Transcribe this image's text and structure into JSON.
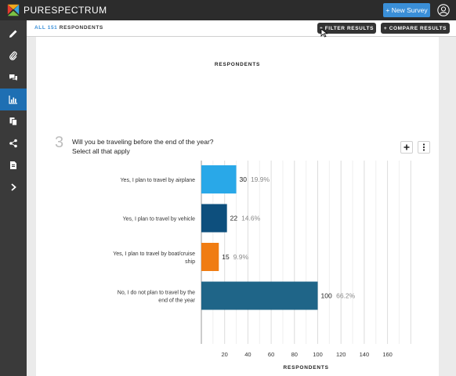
{
  "app": {
    "brand": "PURESPECTRUM",
    "new_survey_label": "+ New Survey"
  },
  "sidebar": {
    "items": [
      {
        "name": "pencil-icon"
      },
      {
        "name": "paperclip-icon"
      },
      {
        "name": "chat-icon"
      },
      {
        "name": "chart-icon",
        "active": true
      },
      {
        "name": "copy-icon"
      },
      {
        "name": "share-icon"
      },
      {
        "name": "document-icon"
      },
      {
        "name": "chevron-right-icon"
      }
    ]
  },
  "toolbar": {
    "all_label": "ALL 151",
    "respondents_label": "RESPONDENTS",
    "filter_label": "+ FILTER RESULTS",
    "compare_label": "+ COMPARE RESULTS"
  },
  "card": {
    "header": "RESPONDENTS",
    "question_number": "3",
    "question_line1": "Will you be traveling before the end of the year?",
    "question_line2": "Select all that apply"
  },
  "chart_data": {
    "type": "bar",
    "orientation": "horizontal",
    "categories": [
      "Yes, I plan to travel by airplane",
      "Yes, I plan to travel by vehicle",
      "Yes, I plan to travel by boat/cruise ship",
      "No, I do not plan to travel by the end of the year"
    ],
    "values": [
      30,
      22,
      15,
      100
    ],
    "percents": [
      "19.9%",
      "14.6%",
      "9.9%",
      "66.2%"
    ],
    "colors": [
      "#29a8e8",
      "#0d4f7d",
      "#f07c12",
      "#1f6588"
    ],
    "xlim": [
      0,
      180
    ],
    "xticks": [
      20,
      40,
      60,
      80,
      100,
      120,
      140,
      160
    ],
    "xlabel": "RESPONDENTS",
    "grid": true
  }
}
